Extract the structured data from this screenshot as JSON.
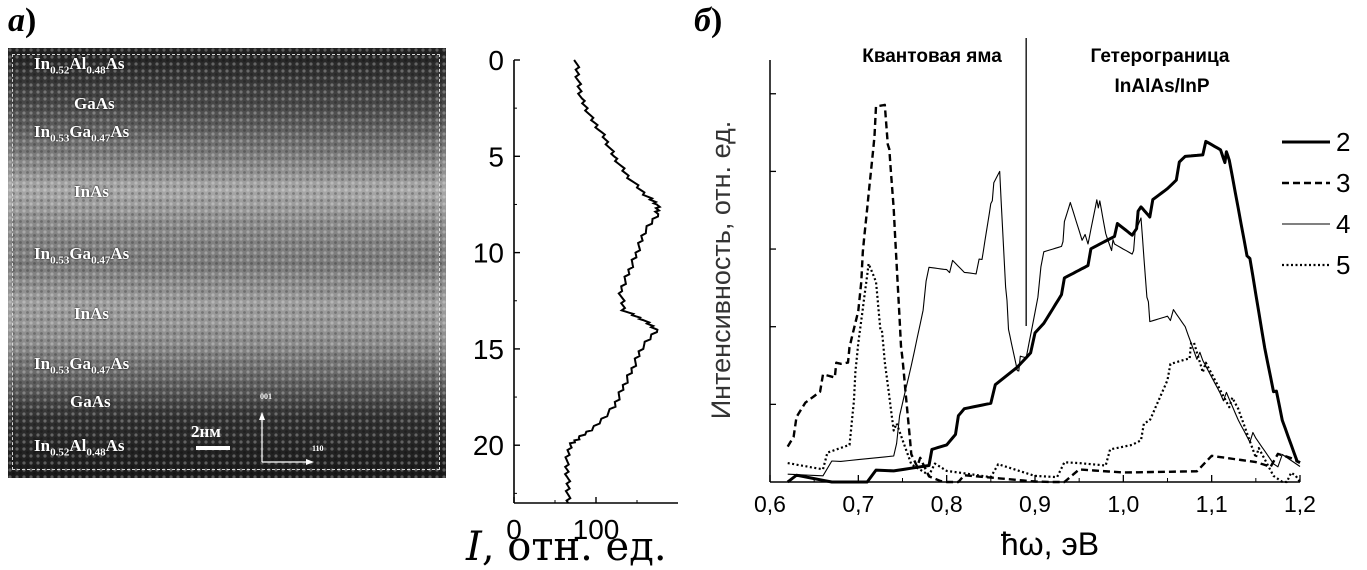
{
  "panel_a": {
    "label": "а",
    "paren": ")",
    "layers": [
      {
        "name": "top-inalas",
        "base": "In",
        "s1": "0.52",
        "el2": "Al",
        "s2": "0.48",
        "rest": "As"
      },
      {
        "name": "gaas-top",
        "plain": "GaAs"
      },
      {
        "name": "ingaas-1",
        "base": "In",
        "s1": "0.53",
        "el2": "Ga",
        "s2": "0.47",
        "rest": "As"
      },
      {
        "name": "inas-1",
        "plain": "InAs"
      },
      {
        "name": "ingaas-2",
        "base": "In",
        "s1": "0.53",
        "el2": "Ga",
        "s2": "0.47",
        "rest": "As"
      },
      {
        "name": "inas-2",
        "plain": "InAs"
      },
      {
        "name": "ingaas-3",
        "base": "In",
        "s1": "0.53",
        "el2": "Ga",
        "s2": "0.47",
        "rest": "As"
      },
      {
        "name": "gaas-bottom",
        "plain": "GaAs"
      },
      {
        "name": "bottom-inalas",
        "base": "In",
        "s1": "0.52",
        "el2": "Al",
        "s2": "0.48",
        "rest": "As"
      }
    ],
    "scale_bar": "2нм",
    "direction_up": "001",
    "direction_right": "110"
  },
  "profile": {
    "y_ticks": [
      "0",
      "5",
      "10",
      "15",
      "20"
    ],
    "x_ticks": [
      "0",
      "100"
    ],
    "xlabel_italic": "I",
    "xlabel_rest": ", отн. ед.",
    "ylim": [
      0,
      23
    ],
    "xlim": [
      0,
      200
    ],
    "points": [
      [
        0,
        76
      ],
      [
        1,
        78
      ],
      [
        2,
        82
      ],
      [
        3,
        94
      ],
      [
        4,
        110
      ],
      [
        5,
        122
      ],
      [
        6,
        138
      ],
      [
        7,
        160
      ],
      [
        7.5,
        175
      ],
      [
        8,
        175
      ],
      [
        9,
        158
      ],
      [
        10,
        150
      ],
      [
        11,
        140
      ],
      [
        12,
        130
      ],
      [
        13,
        134
      ],
      [
        13.5,
        158
      ],
      [
        14,
        174
      ],
      [
        15,
        155
      ],
      [
        16,
        145
      ],
      [
        17,
        133
      ],
      [
        18,
        122
      ],
      [
        19,
        100
      ],
      [
        19.6,
        80
      ],
      [
        20,
        68
      ],
      [
        21,
        64
      ],
      [
        22,
        66
      ],
      [
        23,
        66
      ]
    ]
  },
  "panel_b": {
    "label": "б",
    "paren": ")",
    "annotation_left": "Квантовая яма",
    "annotation_right_line1": "Гетерограница",
    "annotation_right_line2": "InAlAs/InP",
    "ylabel": "Интенсивность, отн. ед.",
    "xlabel": "ħω, эВ",
    "x_ticks": [
      "0,6",
      "0,7",
      "0,8",
      "0,9",
      "1,0",
      "1,1",
      "1,2"
    ]
  },
  "chart_data": {
    "type": "line",
    "xlabel": "ħω, эВ",
    "ylabel": "Интенсивность, отн. ед.",
    "xlim": [
      0.6,
      1.2
    ],
    "ylim": [
      0,
      1
    ],
    "divider_x": 0.89,
    "series": [
      {
        "name": "2",
        "style": "bold-solid",
        "x": [
          0.62,
          0.68,
          0.74,
          0.78,
          0.8,
          0.82,
          0.85,
          0.88,
          0.91,
          0.93,
          0.95,
          0.97,
          0.99,
          1.01,
          1.02,
          1.03,
          1.05,
          1.07,
          1.09,
          1.11,
          1.12,
          1.14,
          1.16,
          1.18,
          1.2
        ],
        "y": [
          0.0,
          0.0,
          0.02,
          0.06,
          0.1,
          0.18,
          0.22,
          0.3,
          0.4,
          0.5,
          0.55,
          0.6,
          0.65,
          0.64,
          0.7,
          0.7,
          0.76,
          0.83,
          0.86,
          0.86,
          0.82,
          0.6,
          0.35,
          0.15,
          0.05
        ]
      },
      {
        "name": "3",
        "style": "dashed",
        "x": [
          0.62,
          0.64,
          0.66,
          0.67,
          0.68,
          0.69,
          0.7,
          0.71,
          0.72,
          0.73,
          0.74,
          0.75,
          0.76,
          0.78,
          0.82,
          0.9,
          1.0,
          1.1,
          1.15,
          1.2
        ],
        "y": [
          0.1,
          0.2,
          0.26,
          0.28,
          0.3,
          0.33,
          0.45,
          0.7,
          0.95,
          0.98,
          0.7,
          0.3,
          0.08,
          0.01,
          0.0,
          0.01,
          0.02,
          0.05,
          0.06,
          0.05
        ]
      },
      {
        "name": "4",
        "style": "thin-solid",
        "x": [
          0.62,
          0.68,
          0.74,
          0.76,
          0.78,
          0.8,
          0.82,
          0.84,
          0.85,
          0.86,
          0.87,
          0.88,
          0.89,
          0.91,
          0.93,
          0.94,
          0.96,
          0.97,
          0.98,
          0.99,
          1.01,
          1.02,
          1.03,
          1.05,
          1.07,
          1.09,
          1.11,
          1.13,
          1.15,
          1.17,
          1.2
        ],
        "y": [
          0.02,
          0.04,
          0.08,
          0.3,
          0.54,
          0.56,
          0.54,
          0.56,
          0.73,
          0.8,
          0.38,
          0.3,
          0.32,
          0.58,
          0.62,
          0.72,
          0.6,
          0.74,
          0.64,
          0.6,
          0.6,
          0.68,
          0.4,
          0.44,
          0.4,
          0.3,
          0.24,
          0.16,
          0.1,
          0.06,
          0.04
        ]
      },
      {
        "name": "5",
        "style": "dotted",
        "x": [
          0.62,
          0.66,
          0.69,
          0.7,
          0.71,
          0.72,
          0.73,
          0.74,
          0.76,
          0.8,
          0.85,
          0.9,
          0.95,
          0.98,
          1.01,
          1.03,
          1.05,
          1.07,
          1.08,
          1.09,
          1.11,
          1.13,
          1.15,
          1.17,
          1.2
        ],
        "y": [
          0.04,
          0.05,
          0.1,
          0.35,
          0.55,
          0.52,
          0.3,
          0.15,
          0.05,
          0.02,
          0.03,
          0.02,
          0.04,
          0.06,
          0.1,
          0.15,
          0.28,
          0.32,
          0.35,
          0.3,
          0.24,
          0.18,
          0.08,
          0.02,
          0.0
        ]
      }
    ],
    "legend": [
      "2",
      "3",
      "4",
      "5"
    ]
  }
}
